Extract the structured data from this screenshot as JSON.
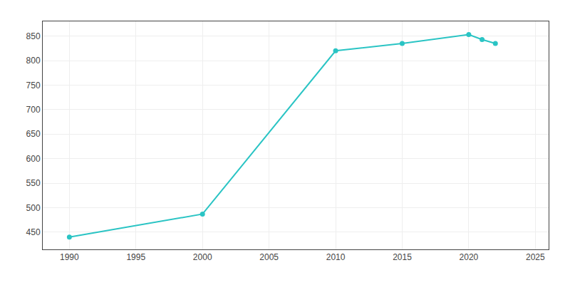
{
  "chart_data": {
    "type": "line",
    "x": [
      1990,
      2000,
      2010,
      2015,
      2020,
      2021,
      2022
    ],
    "values": [
      440,
      487,
      820,
      835,
      853,
      843,
      835
    ],
    "color": "#2ac4c4",
    "marker": "circle",
    "xlim": [
      1988,
      2026
    ],
    "ylim": [
      415,
      880
    ],
    "xticks": [
      1990,
      1995,
      2000,
      2005,
      2010,
      2015,
      2020,
      2025
    ],
    "yticks": [
      450,
      500,
      550,
      600,
      650,
      700,
      750,
      800,
      850
    ],
    "grid": true
  }
}
